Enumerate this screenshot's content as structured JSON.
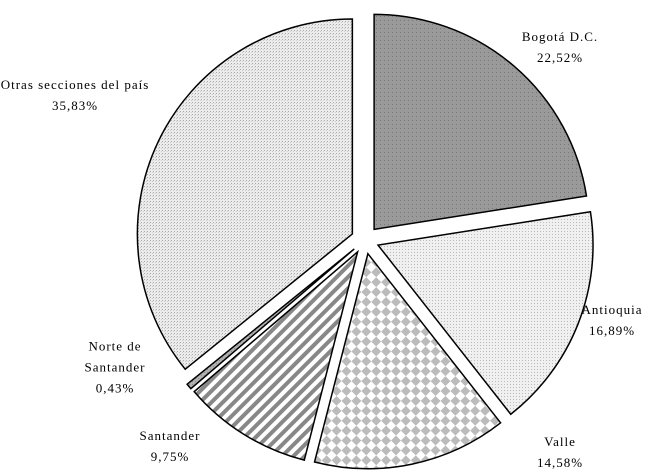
{
  "chart_data": {
    "type": "pie",
    "categories": [
      "Bogotá D.C.",
      "Antioquia",
      "Valle",
      "Santander",
      "Norte de Santander",
      "Otras secciones del país"
    ],
    "values": [
      22.52,
      16.89,
      14.58,
      9.75,
      0.43,
      35.83
    ],
    "value_labels": [
      "22,52%",
      "16,89%",
      "14,58%",
      "9,75%",
      "0,43%",
      "35,83%"
    ],
    "colors": [
      "#9a9a9a",
      "#f0f0f0",
      "#ffffff",
      "#ffffff",
      "#b0b0b0",
      "#ececec"
    ]
  }
}
